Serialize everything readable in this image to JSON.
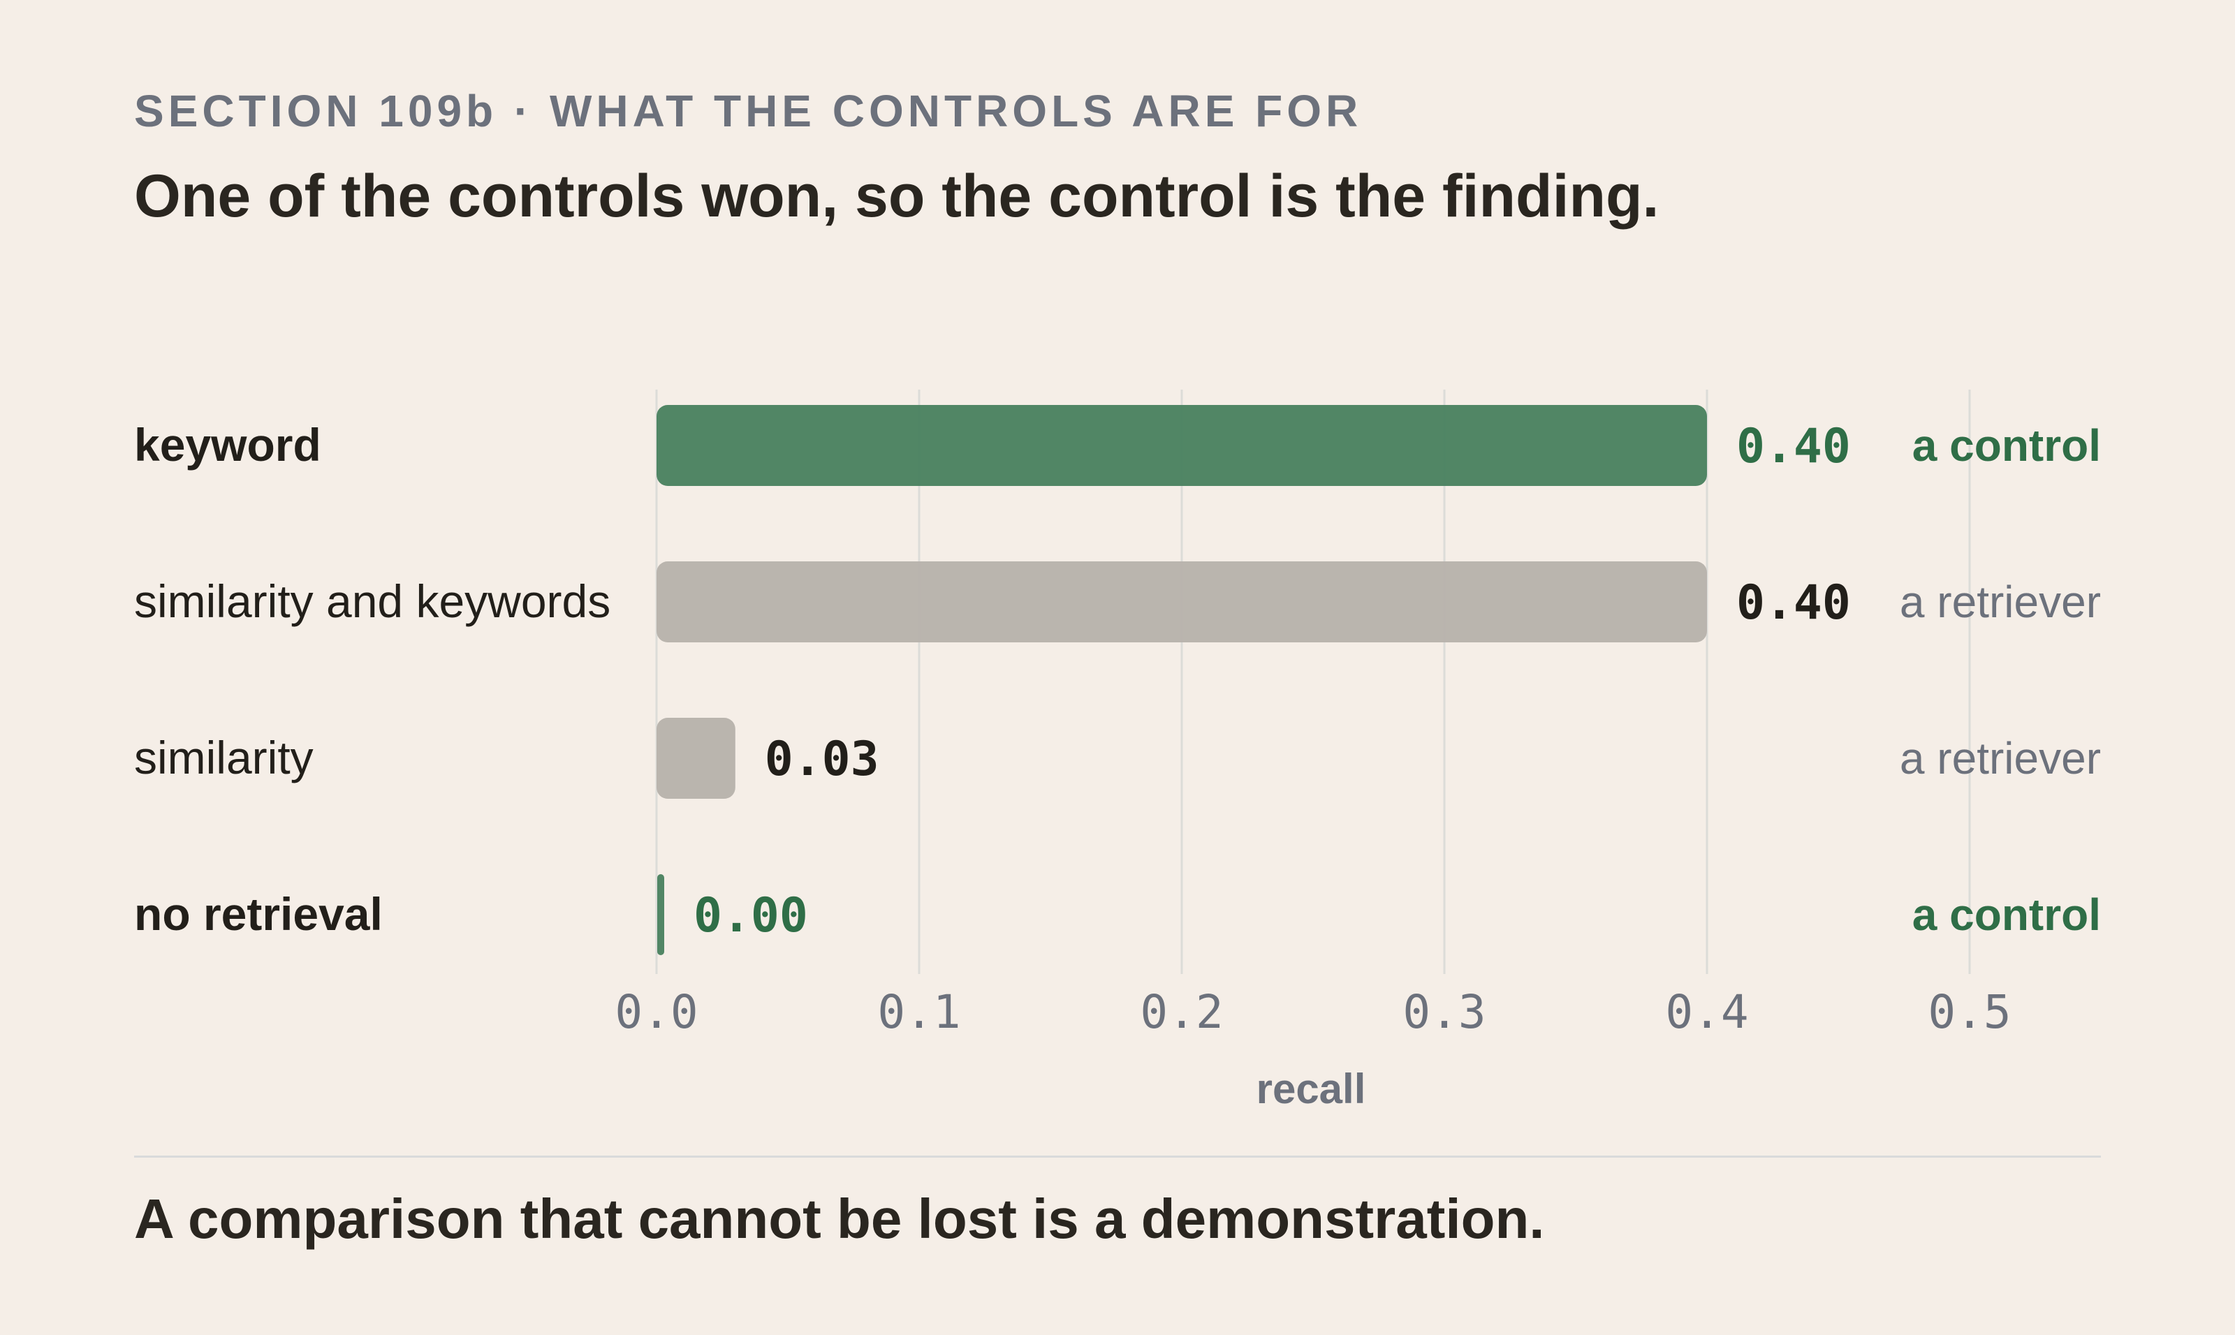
{
  "header": {
    "eyebrow": "SECTION 109b · WHAT THE CONTROLS ARE FOR",
    "headline": "One of the controls won, so the control is the finding."
  },
  "footer": {
    "text": "A comparison that cannot be lost is a demonstration."
  },
  "colors": {
    "control": "#4a8160",
    "control_text": "#2f6e47",
    "retriever": "#b7b2ac",
    "retriever_text": "#6c717c",
    "value_dark": "#221f1a",
    "grid": "#dcdcd8",
    "axis_text": "#6c717c"
  },
  "chart_data": {
    "type": "bar",
    "orientation": "horizontal",
    "xlabel": "recall",
    "xlim": [
      0,
      0.5
    ],
    "xticks": [
      "0.0",
      "0.1",
      "0.2",
      "0.3",
      "0.4",
      "0.5"
    ],
    "grid": true,
    "categories": [
      "keyword",
      "similarity and keywords",
      "similarity",
      "no retrieval"
    ],
    "values": [
      0.4,
      0.4,
      0.03,
      0.0
    ],
    "value_labels": [
      "0.40",
      "0.40",
      "0.03",
      "0.00"
    ],
    "roles": [
      "a control",
      "a retriever",
      "a retriever",
      "a control"
    ]
  }
}
